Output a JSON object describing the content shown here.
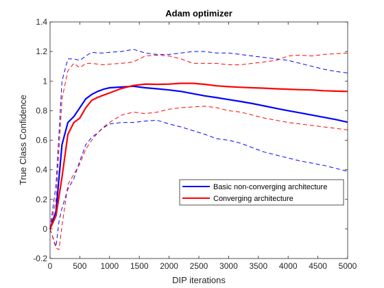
{
  "chart_data": {
    "type": "line",
    "title": "Adam optimizer",
    "xlabel": "DIP iterations",
    "ylabel": "True Class Confidence",
    "xlim": [
      0,
      5000
    ],
    "ylim": [
      -0.2,
      1.4
    ],
    "xticks": [
      0,
      500,
      1000,
      1500,
      2000,
      2500,
      3000,
      3500,
      4000,
      4500,
      5000
    ],
    "yticks": [
      -0.2,
      0,
      0.2,
      0.4,
      0.6,
      0.8,
      1,
      1.2,
      1.4
    ],
    "xtick_labels": [
      "0",
      "500",
      "1000",
      "1500",
      "2000",
      "2500",
      "3000",
      "3500",
      "4000",
      "4500",
      "5000"
    ],
    "ytick_labels": [
      "-0.2",
      "0",
      "0.2",
      "0.4",
      "0.6",
      "0.8",
      "1",
      "1.2",
      "1.4"
    ],
    "grid": false,
    "legend_position": "lower-right",
    "series": [
      {
        "name": "Basic non-converging architecture",
        "color": "#0000ff",
        "style": "solid",
        "x": [
          0,
          100,
          200,
          300,
          400,
          500,
          600,
          700,
          800,
          900,
          1000,
          1200,
          1400,
          1600,
          1800,
          2000,
          2200,
          2400,
          2600,
          2800,
          3000,
          3200,
          3400,
          3600,
          3800,
          4000,
          4200,
          4400,
          4600,
          4800,
          5000
        ],
        "y": [
          0.0,
          0.12,
          0.57,
          0.72,
          0.76,
          0.82,
          0.88,
          0.91,
          0.93,
          0.945,
          0.955,
          0.96,
          0.965,
          0.955,
          0.948,
          0.94,
          0.93,
          0.915,
          0.9,
          0.888,
          0.875,
          0.862,
          0.848,
          0.832,
          0.815,
          0.8,
          0.785,
          0.77,
          0.755,
          0.74,
          0.722
        ]
      },
      {
        "name": "Converging architecture",
        "color": "#ff0000",
        "style": "solid",
        "x": [
          0,
          100,
          200,
          300,
          400,
          500,
          600,
          700,
          800,
          900,
          1000,
          1200,
          1400,
          1600,
          1800,
          2000,
          2200,
          2400,
          2600,
          2800,
          3000,
          3200,
          3400,
          3600,
          3800,
          4000,
          4200,
          4400,
          4600,
          4800,
          5000
        ],
        "y": [
          0.0,
          0.09,
          0.35,
          0.64,
          0.72,
          0.75,
          0.82,
          0.87,
          0.89,
          0.905,
          0.92,
          0.95,
          0.97,
          0.98,
          0.978,
          0.98,
          0.985,
          0.985,
          0.978,
          0.968,
          0.962,
          0.958,
          0.955,
          0.952,
          0.948,
          0.945,
          0.942,
          0.94,
          0.935,
          0.932,
          0.93
        ]
      },
      {
        "name": "",
        "color": "#0000ff",
        "style": "dashed",
        "x": [
          0,
          100,
          200,
          300,
          400,
          500,
          600,
          700,
          800,
          900,
          1000,
          1200,
          1400,
          1600,
          1800,
          2000,
          2200,
          2400,
          2600,
          2800,
          3000,
          3200,
          3400,
          3600,
          3800,
          4000,
          4200,
          4400,
          4600,
          4800,
          5000
        ],
        "y": [
          0.0,
          0.3,
          1.0,
          1.15,
          1.15,
          1.14,
          1.17,
          1.195,
          1.19,
          1.19,
          1.195,
          1.2,
          1.215,
          1.19,
          1.18,
          1.18,
          1.19,
          1.2,
          1.2,
          1.19,
          1.19,
          1.18,
          1.17,
          1.16,
          1.15,
          1.14,
          1.12,
          1.1,
          1.08,
          1.065,
          1.055
        ]
      },
      {
        "name": "",
        "color": "#0000ff",
        "style": "dashed",
        "x": [
          0,
          100,
          150,
          200,
          300,
          400,
          500,
          600,
          700,
          800,
          900,
          1000,
          1200,
          1400,
          1600,
          1800,
          2000,
          2200,
          2400,
          2600,
          2800,
          3000,
          3200,
          3400,
          3600,
          3800,
          4000,
          4200,
          4400,
          4600,
          4800,
          5000
        ],
        "y": [
          0.0,
          -0.12,
          0.05,
          0.14,
          0.27,
          0.34,
          0.46,
          0.57,
          0.62,
          0.65,
          0.685,
          0.71,
          0.72,
          0.72,
          0.73,
          0.735,
          0.71,
          0.69,
          0.665,
          0.64,
          0.61,
          0.6,
          0.58,
          0.55,
          0.52,
          0.5,
          0.48,
          0.46,
          0.445,
          0.43,
          0.41,
          0.39
        ]
      },
      {
        "name": "",
        "color": "#ff0000",
        "style": "dashed",
        "x": [
          0,
          100,
          200,
          300,
          400,
          500,
          600,
          700,
          800,
          900,
          1000,
          1200,
          1400,
          1600,
          1800,
          2000,
          2200,
          2400,
          2600,
          2800,
          3000,
          3200,
          3400,
          3600,
          3800,
          4000,
          4200,
          4400,
          4600,
          4800,
          5000
        ],
        "y": [
          0.0,
          0.2,
          0.88,
          1.07,
          1.12,
          1.09,
          1.12,
          1.12,
          1.115,
          1.11,
          1.115,
          1.12,
          1.13,
          1.17,
          1.175,
          1.17,
          1.15,
          1.12,
          1.12,
          1.12,
          1.11,
          1.11,
          1.12,
          1.13,
          1.14,
          1.17,
          1.175,
          1.17,
          1.18,
          1.185,
          1.19
        ]
      },
      {
        "name": "",
        "color": "#ff0000",
        "style": "dashed",
        "x": [
          0,
          100,
          150,
          200,
          300,
          400,
          500,
          600,
          700,
          800,
          900,
          1000,
          1200,
          1400,
          1600,
          1800,
          2000,
          2200,
          2400,
          2600,
          2800,
          3000,
          3200,
          3400,
          3600,
          3800,
          4000,
          4200,
          4400,
          4600,
          4800,
          5000
        ],
        "y": [
          0.0,
          -0.13,
          -0.14,
          0.02,
          0.3,
          0.37,
          0.44,
          0.54,
          0.6,
          0.65,
          0.69,
          0.72,
          0.77,
          0.79,
          0.78,
          0.79,
          0.81,
          0.82,
          0.825,
          0.83,
          0.82,
          0.8,
          0.79,
          0.77,
          0.75,
          0.735,
          0.72,
          0.71,
          0.7,
          0.69,
          0.68,
          0.67
        ]
      }
    ]
  }
}
